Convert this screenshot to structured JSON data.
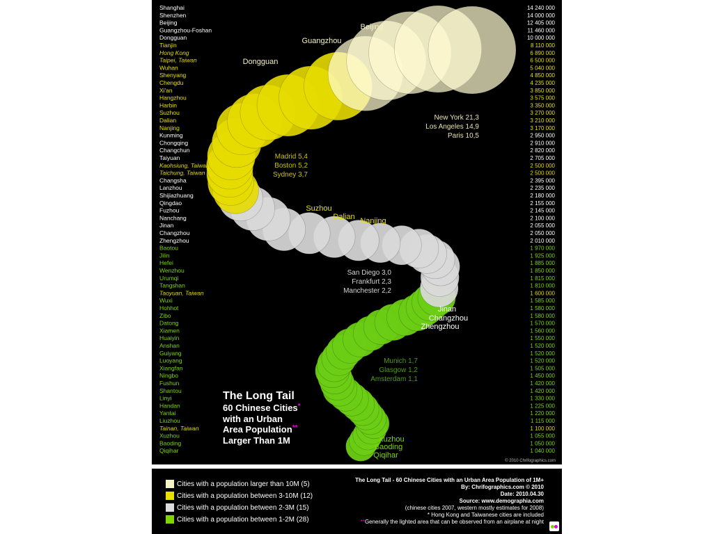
{
  "colors": {
    "over10m": "#f5f3c4",
    "m3to10": "#e8e000",
    "m2to3": "#dddddd",
    "m1to2": "#7fd600",
    "bubble_large": "#fffbd0",
    "bubble_mid": "#e6dc00",
    "bubble_small": "#d9d9d9",
    "bubble_tiny": "#6ccc14",
    "italic_city": "#e6dc00",
    "accent_asterisk": "#e000e0"
  },
  "poster": {
    "copyright": "© 2010 Chrifographics.com",
    "title_line1": "The Long Tail",
    "title_line2": "60 Chinese Cities",
    "title_line3": "with an Urban",
    "title_line4": "Area Population",
    "title_line5": "Larger Than 1M",
    "asterisk1": "*",
    "asterisk2": "**"
  },
  "chart_data": {
    "type": "bubble",
    "title": "The Long Tail - 60 Chinese Cities with an Urban Area Population of 1M+",
    "units": "population",
    "cities": [
      {
        "name": "Shanghai",
        "population": "14 240 000",
        "value": 14240000,
        "tier": 1,
        "italic": false
      },
      {
        "name": "Shenzhen",
        "population": "14 000 000",
        "value": 14000000,
        "tier": 1,
        "italic": false
      },
      {
        "name": "Beijing",
        "population": "12 405 000",
        "value": 12405000,
        "tier": 1,
        "italic": false
      },
      {
        "name": "Guangzhou-Foshan",
        "population": "11 460 000",
        "value": 11460000,
        "tier": 1,
        "italic": false
      },
      {
        "name": "Dongguan",
        "population": "10 000 000",
        "value": 10000000,
        "tier": 1,
        "italic": false
      },
      {
        "name": "Tianjin",
        "population": "8 110 000",
        "value": 8110000,
        "tier": 2,
        "italic": false
      },
      {
        "name": "Hong Kong",
        "population": "6 890 000",
        "value": 6890000,
        "tier": 2,
        "italic": true
      },
      {
        "name": "Taipei, Taiwan",
        "population": "6 500 000",
        "value": 6500000,
        "tier": 2,
        "italic": true
      },
      {
        "name": "Wuhan",
        "population": "5 040 000",
        "value": 5040000,
        "tier": 2,
        "italic": false
      },
      {
        "name": "Shenyang",
        "population": "4 850 000",
        "value": 4850000,
        "tier": 2,
        "italic": false
      },
      {
        "name": "Chengdu",
        "population": "4 235 000",
        "value": 4235000,
        "tier": 2,
        "italic": false
      },
      {
        "name": "Xi'an",
        "population": "3 850 000",
        "value": 3850000,
        "tier": 2,
        "italic": false
      },
      {
        "name": "Hangzhou",
        "population": "3 575 000",
        "value": 3575000,
        "tier": 2,
        "italic": false
      },
      {
        "name": "Harbin",
        "population": "3 350 000",
        "value": 3350000,
        "tier": 2,
        "italic": false
      },
      {
        "name": "Suzhou",
        "population": "3 270 000",
        "value": 3270000,
        "tier": 2,
        "italic": false
      },
      {
        "name": "Dalian",
        "population": "3 210 000",
        "value": 3210000,
        "tier": 2,
        "italic": false
      },
      {
        "name": "Nanjing",
        "population": "3 170 000",
        "value": 3170000,
        "tier": 2,
        "italic": false
      },
      {
        "name": "Kunming",
        "population": "2 950 000",
        "value": 2950000,
        "tier": 3,
        "italic": false
      },
      {
        "name": "Chongqing",
        "population": "2 910 000",
        "value": 2910000,
        "tier": 3,
        "italic": false
      },
      {
        "name": "Changchun",
        "population": "2 820 000",
        "value": 2820000,
        "tier": 3,
        "italic": false
      },
      {
        "name": "Taiyuan",
        "population": "2 705 000",
        "value": 2705000,
        "tier": 3,
        "italic": false
      },
      {
        "name": "Kaohsiung, Taiwan",
        "population": "2 500 000",
        "value": 2500000,
        "tier": 3,
        "italic": true
      },
      {
        "name": "Taichung, Taiwan",
        "population": "2 500 000",
        "value": 2500000,
        "tier": 3,
        "italic": true
      },
      {
        "name": "Changsha",
        "population": "2 395 000",
        "value": 2395000,
        "tier": 3,
        "italic": false
      },
      {
        "name": "Lanzhou",
        "population": "2 235 000",
        "value": 2235000,
        "tier": 3,
        "italic": false
      },
      {
        "name": "Shijiazhuang",
        "population": "2 180 000",
        "value": 2180000,
        "tier": 3,
        "italic": false
      },
      {
        "name": "Qingdao",
        "population": "2 155 000",
        "value": 2155000,
        "tier": 3,
        "italic": false
      },
      {
        "name": "Fuzhou",
        "population": "2 145 000",
        "value": 2145000,
        "tier": 3,
        "italic": false
      },
      {
        "name": "Nanchang",
        "population": "2 100 000",
        "value": 2100000,
        "tier": 3,
        "italic": false
      },
      {
        "name": "Jinan",
        "population": "2 055 000",
        "value": 2055000,
        "tier": 3,
        "italic": false
      },
      {
        "name": "Changzhou",
        "population": "2 050 000",
        "value": 2050000,
        "tier": 3,
        "italic": false
      },
      {
        "name": "Zhengzhou",
        "population": "2 010 000",
        "value": 2010000,
        "tier": 3,
        "italic": false
      },
      {
        "name": "Baotou",
        "population": "1 970 000",
        "value": 1970000,
        "tier": 4,
        "italic": false
      },
      {
        "name": "Jilin",
        "population": "1 925 000",
        "value": 1925000,
        "tier": 4,
        "italic": false
      },
      {
        "name": "Hefei",
        "population": "1 885 000",
        "value": 1885000,
        "tier": 4,
        "italic": false
      },
      {
        "name": "Wenzhou",
        "population": "1 850 000",
        "value": 1850000,
        "tier": 4,
        "italic": false
      },
      {
        "name": "Urumqi",
        "population": "1 815 000",
        "value": 1815000,
        "tier": 4,
        "italic": false
      },
      {
        "name": "Tangshan",
        "population": "1 810 000",
        "value": 1810000,
        "tier": 4,
        "italic": false
      },
      {
        "name": "Taoyuan, Taiwan",
        "population": "1 600 000",
        "value": 1600000,
        "tier": 4,
        "italic": true
      },
      {
        "name": "Wuxi",
        "population": "1 585 000",
        "value": 1585000,
        "tier": 4,
        "italic": false
      },
      {
        "name": "Hohhot",
        "population": "1 580 000",
        "value": 1580000,
        "tier": 4,
        "italic": false
      },
      {
        "name": "Zibo",
        "population": "1 580 000",
        "value": 1580000,
        "tier": 4,
        "italic": false
      },
      {
        "name": "Datong",
        "population": "1 570 000",
        "value": 1570000,
        "tier": 4,
        "italic": false
      },
      {
        "name": "Xiamen",
        "population": "1 560 000",
        "value": 1560000,
        "tier": 4,
        "italic": false
      },
      {
        "name": "Huaiyin",
        "population": "1 550 000",
        "value": 1550000,
        "tier": 4,
        "italic": false
      },
      {
        "name": "Anshan",
        "population": "1 520 000",
        "value": 1520000,
        "tier": 4,
        "italic": false
      },
      {
        "name": "Guiyang",
        "population": "1 520 000",
        "value": 1520000,
        "tier": 4,
        "italic": false
      },
      {
        "name": "Luoyang",
        "population": "1 520 000",
        "value": 1520000,
        "tier": 4,
        "italic": false
      },
      {
        "name": "Xiangfan",
        "population": "1 505 000",
        "value": 1505000,
        "tier": 4,
        "italic": false
      },
      {
        "name": "Ningbo",
        "population": "1 450 000",
        "value": 1450000,
        "tier": 4,
        "italic": false
      },
      {
        "name": "Fushun",
        "population": "1 420 000",
        "value": 1420000,
        "tier": 4,
        "italic": false
      },
      {
        "name": "Shantou",
        "population": "1 420 000",
        "value": 1420000,
        "tier": 4,
        "italic": false
      },
      {
        "name": "Linyi",
        "population": "1 330 000",
        "value": 1330000,
        "tier": 4,
        "italic": false
      },
      {
        "name": "Handan",
        "population": "1 225 000",
        "value": 1225000,
        "tier": 4,
        "italic": false
      },
      {
        "name": "Yantai",
        "population": "1 220 000",
        "value": 1220000,
        "tier": 4,
        "italic": false
      },
      {
        "name": "Liuzhou",
        "population": "1 115 000",
        "value": 1115000,
        "tier": 4,
        "italic": false
      },
      {
        "name": "Tainan, Taiwan",
        "population": "1 100 000",
        "value": 1100000,
        "tier": 4,
        "italic": true
      },
      {
        "name": "Xuzhou",
        "population": "1 055 000",
        "value": 1055000,
        "tier": 4,
        "italic": false
      },
      {
        "name": "Baoding",
        "population": "1 050 000",
        "value": 1050000,
        "tier": 4,
        "italic": false
      },
      {
        "name": "Qiqihar",
        "population": "1 040 000",
        "value": 1040000,
        "tier": 4,
        "italic": false
      }
    ],
    "bubble_labels": [
      {
        "text": "Beijing",
        "tier": 1
      },
      {
        "text": "Guangzhou",
        "tier": 1
      },
      {
        "text": "Dongguan",
        "tier": 1
      },
      {
        "text": "Suzhou",
        "tier": 2
      },
      {
        "text": "Dalian",
        "tier": 2
      },
      {
        "text": "Nanjing",
        "tier": 2
      },
      {
        "text": "Jinan",
        "tier": 3
      },
      {
        "text": "Changzhou",
        "tier": 3
      },
      {
        "text": "Zhengzhou",
        "tier": 3
      },
      {
        "text": "Xuzhou",
        "tier": 4
      },
      {
        "text": "Baoding",
        "tier": 4
      },
      {
        "text": "Qiqihar",
        "tier": 4
      }
    ],
    "comparisons": [
      {
        "tier": 1,
        "lines": [
          "New York 21,3",
          "Los Angeles 14,9",
          "Paris 10,5"
        ]
      },
      {
        "tier": 2,
        "lines": [
          "Madrid 5,4",
          "Boston 5,2",
          "Sydney 3,7"
        ]
      },
      {
        "tier": 3,
        "lines": [
          "San Diego 3,0",
          "Frankfurt 2,3",
          "Manchester 2,2"
        ]
      },
      {
        "tier": 4,
        "lines": [
          "Munich 1,7",
          "Glasgow 1,2",
          "Amsterdam 1,1"
        ]
      }
    ],
    "legend": [
      {
        "label": "Cities with a population larger than 10M (5)",
        "color": "#f5f3c4"
      },
      {
        "label": "Cities with a population between 3-10M (12)",
        "color": "#e8e000"
      },
      {
        "label": "Cities with a population between 2-3M (15)",
        "color": "#dddddd"
      },
      {
        "label": "Cities with a population between 1-2M (28)",
        "color": "#7fd600"
      }
    ]
  },
  "footer": {
    "title": "The Long Tail - 60 Chinese Cities with an Urban Area Population of 1M+",
    "by": "By: Chrifographics.com © 2010",
    "date": "Date: 2010.04.30",
    "source": "Source: www.demographia.com",
    "note1": "(chinese cities 2007, western mostly estimates for 2008)",
    "note2": "* Hong Kong and Taiwanese cities are included",
    "note3_mark": "**",
    "note3": "Generally the lighted area that can be observed from an airplane at night"
  }
}
